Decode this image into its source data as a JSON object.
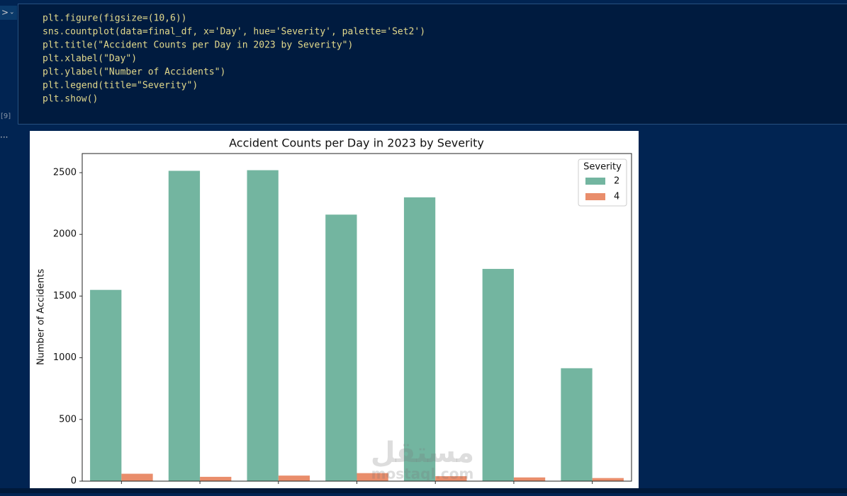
{
  "notebook": {
    "execution_count": "[9]",
    "output_prompt": "...",
    "code": [
      "plt.figure(figsize=(10,6))",
      "sns.countplot(data=final_df, x='Day', hue='Severity', palette='Set2')",
      "plt.title(\"Accident Counts per Day in 2023 by Severity\")",
      "plt.xlabel(\"Day\")",
      "plt.ylabel(\"Number of Accidents\")",
      "plt.legend(title=\"Severity\")",
      "plt.show()"
    ],
    "watermark": [
      "مستقل",
      "mostaql.com"
    ]
  },
  "chart_data": {
    "type": "bar",
    "title": "Accident Counts per Day in 2023 by Severity",
    "y_label": "Number of Accidents",
    "legend_title": "Severity",
    "legend_position": "upper right",
    "categories": [
      null,
      null,
      null,
      null,
      null,
      null,
      null
    ],
    "series": [
      {
        "name": "2",
        "color": "#73b5a0",
        "values": [
          1550,
          2515,
          2520,
          2160,
          2300,
          1720,
          915
        ]
      },
      {
        "name": "4",
        "color": "#e98d6b",
        "values": [
          60,
          35,
          45,
          65,
          40,
          30,
          25
        ]
      }
    ],
    "ylim": [
      0,
      2655
    ],
    "yticks": [
      0,
      500,
      1000,
      1500,
      2000,
      2500
    ],
    "grid": false
  }
}
